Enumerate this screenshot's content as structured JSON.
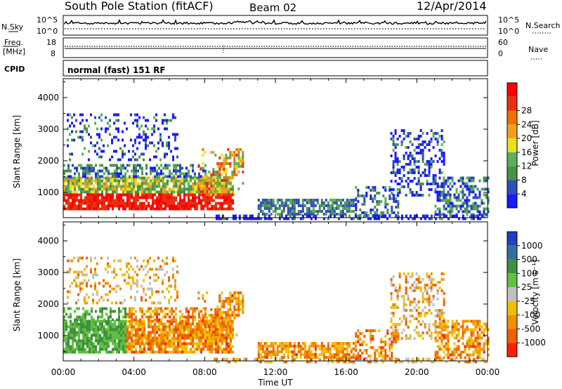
{
  "header": {
    "station": "South Pole Station (fitACF)",
    "beam": "Beam 02",
    "date": "12/Apr/2014"
  },
  "top_panels": {
    "nsky_label": "N.Sky",
    "nsky_ticks": [
      "10^5",
      "10^0"
    ],
    "nsearch_label": "N.Search",
    "nsearch_ticks": [
      "10^5",
      "10^0"
    ],
    "freq_label": "Freq.",
    "freq_unit": "[MHz]",
    "freq_ticks": [
      "18",
      "8"
    ],
    "nave_label": "Nave",
    "nave_ticks": [
      "60",
      "0"
    ],
    "cpid_label": "CPID",
    "cpid_text": "normal (fast) 151 RF"
  },
  "colors": {
    "power": [
      "#1a1aff",
      "#2e4fb8",
      "#4a8f4a",
      "#5aaf5a",
      "#e8e020",
      "#f0a020",
      "#f07000",
      "#e83010",
      "#ff0000"
    ],
    "velocity": [
      "#2040c0",
      "#3070a0",
      "#409040",
      "#60c040",
      "#c0c0c0",
      "#f0c000",
      "#f09000",
      "#f06000",
      "#ff2000"
    ]
  },
  "chart_data": [
    {
      "type": "heatmap",
      "name": "Power",
      "ylabel": "Slant Range [km]",
      "yticks": [
        "1000",
        "2000",
        "3000",
        "4000"
      ],
      "ylim": [
        200,
        4600
      ],
      "xticks": [
        "00:00",
        "04:00",
        "08:00",
        "12:00",
        "16:00",
        "20:00",
        "00:00"
      ],
      "colorbar_label": "Power [dB]",
      "colorbar_ticks": [
        "4",
        "8",
        "12",
        "16",
        "20",
        "24",
        "28"
      ],
      "grid": false
    },
    {
      "type": "heatmap",
      "name": "Velocity",
      "ylabel": "Slant Range [km]",
      "yticks": [
        "1000",
        "2000",
        "3000",
        "4000"
      ],
      "ylim": [
        200,
        4600
      ],
      "xticks": [
        "00:00",
        "04:00",
        "08:00",
        "12:00",
        "16:00",
        "20:00",
        "00:00"
      ],
      "xlabel": "Time UT",
      "colorbar_label": "Velocity [m s⁻¹]",
      "colorbar_ticks": [
        "1000",
        "500",
        "100",
        "25",
        "-25",
        "-100",
        "-500",
        "-1000"
      ],
      "grid": false
    }
  ]
}
